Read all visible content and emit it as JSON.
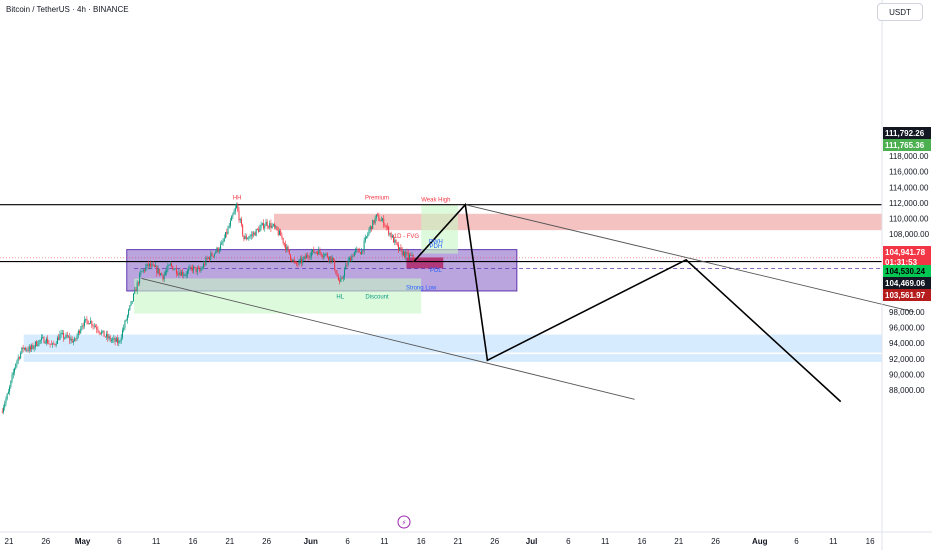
{
  "header": {
    "title": "Bitcoin / TetherUS · 4h · BINANCE",
    "currency": "USDT"
  },
  "chart_data": {
    "type": "candlestick",
    "symbol": "Bitcoin / TetherUS",
    "interval": "4h",
    "exchange": "BINANCE",
    "y_axis": {
      "ticks": [
        88000,
        90000,
        92000,
        94000,
        96000,
        98000,
        100000,
        102000,
        104000,
        106000,
        108000,
        110000,
        112000,
        114000,
        116000,
        118000
      ],
      "tick_labels": [
        "88,000.00",
        "90,000.00",
        "92,000.00",
        "94,000.00",
        "96,000.00",
        "98,000.00",
        "100,000.00",
        "102,000.00",
        "104,000.00",
        "106,000.00",
        "108,000.00",
        "110,000.00",
        "112,000.00",
        "114,000.00",
        "116,000.00",
        "118,000.00"
      ],
      "visible_range": [
        87000,
        120000
      ]
    },
    "x_axis": {
      "tick_labels": [
        "21",
        "26",
        "May",
        "6",
        "11",
        "16",
        "21",
        "26",
        "Jun",
        "6",
        "11",
        "16",
        "21",
        "26",
        "Jul",
        "6",
        "11",
        "16",
        "21",
        "26",
        "Aug",
        "6",
        "11",
        "16"
      ],
      "tick_dates": [
        "2025-04-21",
        "2025-04-26",
        "2025-05-01",
        "2025-05-06",
        "2025-05-11",
        "2025-05-16",
        "2025-05-21",
        "2025-05-26",
        "2025-06-01",
        "2025-06-06",
        "2025-06-11",
        "2025-06-16",
        "2025-06-21",
        "2025-06-26",
        "2025-07-01",
        "2025-07-06",
        "2025-07-11",
        "2025-07-16",
        "2025-07-21",
        "2025-07-26",
        "2025-08-01",
        "2025-08-06",
        "2025-08-11",
        "2025-08-16"
      ]
    },
    "price_path": [
      [
        "2025-04-20",
        85200
      ],
      [
        "2025-04-21",
        87600
      ],
      [
        "2025-04-22",
        91500
      ],
      [
        "2025-04-23",
        93400
      ],
      [
        "2025-04-24",
        93200
      ],
      [
        "2025-04-25",
        94200
      ],
      [
        "2025-04-26",
        94500
      ],
      [
        "2025-04-27",
        93600
      ],
      [
        "2025-04-28",
        95000
      ],
      [
        "2025-04-29",
        94700
      ],
      [
        "2025-04-30",
        94200
      ],
      [
        "2025-05-01",
        96500
      ],
      [
        "2025-05-02",
        96900
      ],
      [
        "2025-05-03",
        96000
      ],
      [
        "2025-05-04",
        95000
      ],
      [
        "2025-05-05",
        94400
      ],
      [
        "2025-05-06",
        94100
      ],
      [
        "2025-05-07",
        97000
      ],
      [
        "2025-05-08",
        100000
      ],
      [
        "2025-05-09",
        103000
      ],
      [
        "2025-05-10",
        104000
      ],
      [
        "2025-05-11",
        103500
      ],
      [
        "2025-05-12",
        102600
      ],
      [
        "2025-05-13",
        104000
      ],
      [
        "2025-05-14",
        103200
      ],
      [
        "2025-05-15",
        102900
      ],
      [
        "2025-05-16",
        103600
      ],
      [
        "2025-05-17",
        103200
      ],
      [
        "2025-05-18",
        104800
      ],
      [
        "2025-05-19",
        105600
      ],
      [
        "2025-05-20",
        106600
      ],
      [
        "2025-05-21",
        109000
      ],
      [
        "2025-05-22",
        111600
      ],
      [
        "2025-05-23",
        107400
      ],
      [
        "2025-05-24",
        107800
      ],
      [
        "2025-05-25",
        108600
      ],
      [
        "2025-05-26",
        109400
      ],
      [
        "2025-05-27",
        108900
      ],
      [
        "2025-05-28",
        107800
      ],
      [
        "2025-05-29",
        105700
      ],
      [
        "2025-05-30",
        104000
      ],
      [
        "2025-05-31",
        104600
      ],
      [
        "2025-06-01",
        105600
      ],
      [
        "2025-06-02",
        105800
      ],
      [
        "2025-06-03",
        105400
      ],
      [
        "2025-06-04",
        104800
      ],
      [
        "2025-06-05",
        101500
      ],
      [
        "2025-06-06",
        104200
      ],
      [
        "2025-06-07",
        105700
      ],
      [
        "2025-06-08",
        105800
      ],
      [
        "2025-06-09",
        108500
      ],
      [
        "2025-06-10",
        110200
      ],
      [
        "2025-06-11",
        109500
      ],
      [
        "2025-06-12",
        107800
      ],
      [
        "2025-06-13",
        106000
      ],
      [
        "2025-06-14",
        105300
      ],
      [
        "2025-06-15",
        104941.78
      ]
    ],
    "current_price": {
      "price": "104,941.78",
      "countdown": "01:31:53"
    },
    "price_labels": [
      {
        "price": 111792.26,
        "label": "111,792.26",
        "color": "#131722",
        "text_color": "#ffffff"
      },
      {
        "price": 111765.36,
        "label": "111,765.36",
        "color": "#4caf50",
        "text_color": "#ffffff"
      },
      {
        "price": 104530.24,
        "label": "104,530.24",
        "color": "#00c853",
        "text_color": "#000000"
      },
      {
        "price": 104469.06,
        "label": "104,469.06",
        "color": "#131722",
        "text_color": "#ffffff"
      },
      {
        "price": 103561.97,
        "label": "103,561.97",
        "color": "#b71c1c",
        "text_color": "#ffffff"
      }
    ],
    "zones": [
      {
        "kind": "purple-range",
        "from": "2025-05-07",
        "to": "2025-06-29",
        "top": 106000,
        "bottom": 100700,
        "color": "#9575cd"
      },
      {
        "kind": "premium-supply",
        "from": "2025-05-27",
        "to": "2025-08-22",
        "top": 110600,
        "bottom": 108500,
        "color": "#ef9a9a"
      },
      {
        "kind": "demand-blue",
        "from": "2025-04-23",
        "to": "2025-08-22",
        "top": 95100,
        "bottom": 92800,
        "color": "#bbdefb"
      },
      {
        "kind": "demand-blue-2",
        "from": "2025-04-23",
        "to": "2025-08-22",
        "top": 92600,
        "bottom": 91600,
        "color": "#bbdefb"
      },
      {
        "kind": "green-discount",
        "from": "2025-05-08",
        "to": "2025-06-16",
        "top": 102300,
        "bottom": 97800,
        "color": "#c8f7c5"
      },
      {
        "kind": "green-premium",
        "from": "2025-06-16",
        "to": "2025-06-21",
        "top": 111700,
        "bottom": 105500,
        "color": "#c8f7c5"
      },
      {
        "kind": "red-fvg",
        "from": "2025-06-14",
        "to": "2025-06-19",
        "top": 105000,
        "bottom": 103600,
        "color": "#ad1457"
      }
    ],
    "horizontal_lines": [
      111765.36,
      104469.06
    ],
    "dashed_line": 103561.97,
    "projection": [
      [
        "2025-06-15",
        104469
      ],
      [
        "2025-06-22",
        111765
      ],
      [
        "2025-06-25",
        91800
      ],
      [
        "2025-07-22",
        104700
      ],
      [
        "2025-08-12",
        86500
      ]
    ],
    "trendlines": [
      [
        [
          "2025-05-09",
          102300
        ],
        [
          "2025-07-15",
          86800
        ]
      ],
      [
        [
          "2025-06-22",
          111765
        ],
        [
          "2025-08-22",
          98000
        ]
      ]
    ],
    "annotations": [
      {
        "text": "HH",
        "date": "2025-05-22",
        "price": 112400,
        "color": "#f23645"
      },
      {
        "text": "Premium",
        "date": "2025-06-10",
        "price": 112400,
        "color": "#f23645"
      },
      {
        "text": "Weak High",
        "date": "2025-06-18",
        "price": 112200,
        "color": "#f23645"
      },
      {
        "text": "1D - FVG",
        "date": "2025-06-14",
        "price": 107500,
        "color": "#f23645"
      },
      {
        "text": "PWH",
        "date": "2025-06-18",
        "price": 106800,
        "color": "#2962ff"
      },
      {
        "text": "PDH",
        "date": "2025-06-18",
        "price": 106200,
        "color": "#2962ff"
      },
      {
        "text": "PDL",
        "date": "2025-06-18",
        "price": 103100,
        "color": "#2962ff"
      },
      {
        "text": "Strong Low",
        "date": "2025-06-16",
        "price": 100900,
        "color": "#2962ff"
      },
      {
        "text": "Discount",
        "date": "2025-06-10",
        "price": 99700,
        "color": "#089981"
      },
      {
        "text": "HL",
        "date": "2025-06-05",
        "price": 99700,
        "color": "#089981"
      }
    ]
  }
}
